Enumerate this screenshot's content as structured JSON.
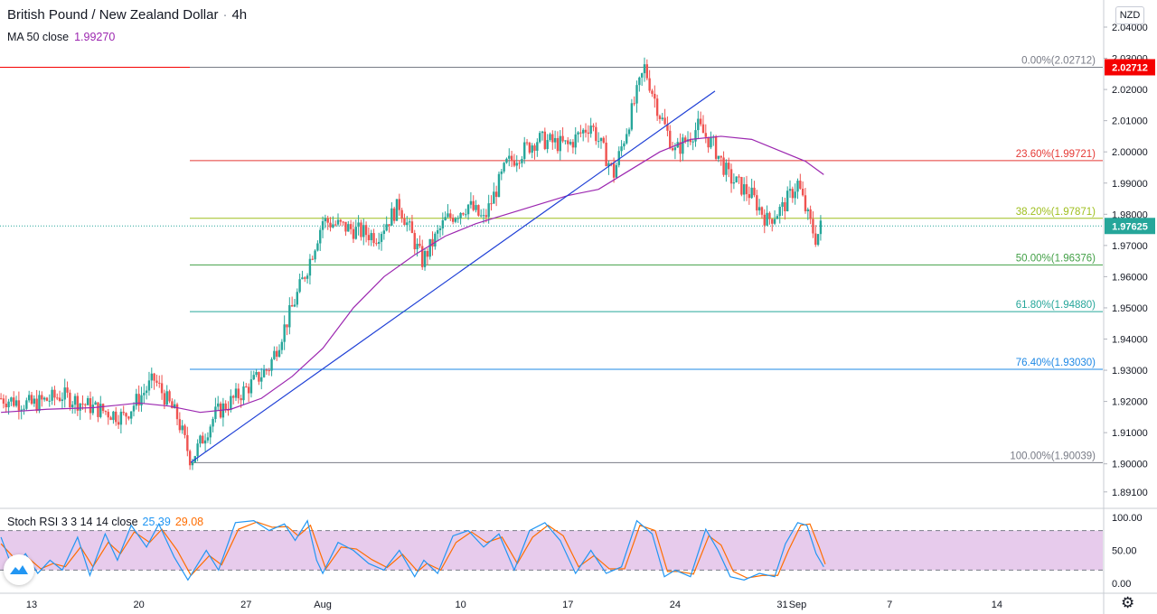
{
  "header": {
    "symbol": "British Pound / New Zealand Dollar",
    "timeframe": "4h",
    "currency": "NZD"
  },
  "ma_legend": {
    "label": "MA 50 close",
    "value": "1.99270"
  },
  "stoch_legend": {
    "label": "Stoch RSI 3 3 14 14 close",
    "k_value": "25.39",
    "d_value": "29.08"
  },
  "icons": [
    "tradingview-logo-icon",
    "gear-icon"
  ],
  "colors": {
    "up": "#26a69a",
    "down": "#ef5350",
    "ma": "#9c27b0",
    "trendline": "#1e3fd6",
    "stoch_k": "#2196f3",
    "stoch_d": "#ff6d00",
    "stoch_band": "#e1bee7",
    "current_price_bg": "#26a69a",
    "high_price_bg": "#f50000"
  },
  "chart_data": {
    "type": "candlestick",
    "ylim": [
      1.887,
      2.044
    ],
    "y_ticks": [
      "1.89100",
      "1.90000",
      "1.91000",
      "1.92000",
      "1.93000",
      "1.94000",
      "1.95000",
      "1.96000",
      "1.97000",
      "1.98000",
      "1.99000",
      "2.00000",
      "2.01000",
      "2.02000",
      "2.03000",
      "2.04000"
    ],
    "x_ticks": [
      {
        "label": "13",
        "day": 13
      },
      {
        "label": "20",
        "day": 20
      },
      {
        "label": "27",
        "day": 27
      },
      {
        "label": "Aug",
        "day": 32
      },
      {
        "label": "10",
        "day": 41
      },
      {
        "label": "17",
        "day": 48
      },
      {
        "label": "24",
        "day": 55
      },
      {
        "label": "31",
        "day": 62
      },
      {
        "label": "Sep",
        "day": 63
      },
      {
        "label": "7",
        "day": 69
      },
      {
        "label": "14",
        "day": 76
      }
    ],
    "current_price": "1.97625",
    "high_price": "2.02712",
    "fib_levels": [
      {
        "label": "0.00%(2.02712)",
        "price": 2.02712,
        "color": "#787b86"
      },
      {
        "label": "23.60%(1.99721)",
        "price": 1.99721,
        "color": "#e53935"
      },
      {
        "label": "38.20%(1.97871)",
        "price": 1.97871,
        "color": "#9fbf1f"
      },
      {
        "label": "50.00%(1.96376)",
        "price": 1.96376,
        "color": "#43a047"
      },
      {
        "label": "61.80%(1.94880)",
        "price": 1.9488,
        "color": "#26a69a"
      },
      {
        "label": "76.40%(1.93030)",
        "price": 1.9303,
        "color": "#1e88e5"
      },
      {
        "label": "100.00%(1.90039)",
        "price": 1.90039,
        "color": "#787b86"
      }
    ],
    "trendline": [
      {
        "day": 23.4,
        "price": 1.9005
      },
      {
        "day": 57.6,
        "price": 2.0195
      }
    ],
    "price_path": [
      {
        "day": 11.0,
        "price": 1.921
      },
      {
        "day": 13.0,
        "price": 1.919
      },
      {
        "day": 15.0,
        "price": 1.922
      },
      {
        "day": 17.0,
        "price": 1.918
      },
      {
        "day": 19.0,
        "price": 1.915
      },
      {
        "day": 21.0,
        "price": 1.927
      },
      {
        "day": 22.5,
        "price": 1.915
      },
      {
        "day": 23.4,
        "price": 1.901
      },
      {
        "day": 25.0,
        "price": 1.916
      },
      {
        "day": 27.0,
        "price": 1.924
      },
      {
        "day": 28.5,
        "price": 1.931
      },
      {
        "day": 30.0,
        "price": 1.95
      },
      {
        "day": 31.0,
        "price": 1.963
      },
      {
        "day": 32.0,
        "price": 1.978
      },
      {
        "day": 34.0,
        "price": 1.975
      },
      {
        "day": 35.5,
        "price": 1.973
      },
      {
        "day": 37.0,
        "price": 1.983
      },
      {
        "day": 38.5,
        "price": 1.965
      },
      {
        "day": 40.0,
        "price": 1.978
      },
      {
        "day": 41.5,
        "price": 1.983
      },
      {
        "day": 42.5,
        "price": 1.978
      },
      {
        "day": 44.0,
        "price": 1.996
      },
      {
        "day": 46.0,
        "price": 2.004
      },
      {
        "day": 48.0,
        "price": 2.002
      },
      {
        "day": 49.5,
        "price": 2.009
      },
      {
        "day": 51.0,
        "price": 1.993
      },
      {
        "day": 52.0,
        "price": 2.01
      },
      {
        "day": 53.0,
        "price": 2.027
      },
      {
        "day": 54.0,
        "price": 2.012
      },
      {
        "day": 55.0,
        "price": 2.0
      },
      {
        "day": 56.5,
        "price": 2.008
      },
      {
        "day": 57.5,
        "price": 2.002
      },
      {
        "day": 58.5,
        "price": 1.992
      },
      {
        "day": 60.0,
        "price": 1.986
      },
      {
        "day": 61.0,
        "price": 1.978
      },
      {
        "day": 62.0,
        "price": 1.982
      },
      {
        "day": 63.0,
        "price": 1.99
      },
      {
        "day": 63.6,
        "price": 1.98
      },
      {
        "day": 64.2,
        "price": 1.972
      },
      {
        "day": 64.5,
        "price": 1.976
      }
    ],
    "ma_path": [
      {
        "day": 11.0,
        "price": 1.9165
      },
      {
        "day": 14.0,
        "price": 1.9175
      },
      {
        "day": 17.0,
        "price": 1.918
      },
      {
        "day": 20.0,
        "price": 1.9195
      },
      {
        "day": 22.0,
        "price": 1.9185
      },
      {
        "day": 24.0,
        "price": 1.9165
      },
      {
        "day": 26.0,
        "price": 1.9175
      },
      {
        "day": 28.0,
        "price": 1.921
      },
      {
        "day": 30.0,
        "price": 1.928
      },
      {
        "day": 32.0,
        "price": 1.937
      },
      {
        "day": 34.0,
        "price": 1.95
      },
      {
        "day": 36.0,
        "price": 1.96
      },
      {
        "day": 38.0,
        "price": 1.967
      },
      {
        "day": 40.0,
        "price": 1.973
      },
      {
        "day": 42.0,
        "price": 1.977
      },
      {
        "day": 44.0,
        "price": 1.98
      },
      {
        "day": 46.0,
        "price": 1.983
      },
      {
        "day": 48.0,
        "price": 1.986
      },
      {
        "day": 50.0,
        "price": 1.988
      },
      {
        "day": 52.0,
        "price": 1.994
      },
      {
        "day": 54.0,
        "price": 2.0
      },
      {
        "day": 56.0,
        "price": 2.004
      },
      {
        "day": 58.0,
        "price": 2.005
      },
      {
        "day": 60.0,
        "price": 2.004
      },
      {
        "day": 62.0,
        "price": 2.0
      },
      {
        "day": 63.5,
        "price": 1.997
      },
      {
        "day": 64.7,
        "price": 1.9927
      }
    ],
    "stoch_rsi": {
      "ylim": [
        0,
        100
      ],
      "y_ticks": [
        "100.00",
        "50.00",
        "0.00"
      ],
      "band": [
        20,
        80
      ],
      "k_path": [
        {
          "day": 11.0,
          "v": 70
        },
        {
          "day": 11.8,
          "v": 20
        },
        {
          "day": 12.6,
          "v": 45
        },
        {
          "day": 13.4,
          "v": 15
        },
        {
          "day": 14.2,
          "v": 35
        },
        {
          "day": 15.0,
          "v": 20
        },
        {
          "day": 16.0,
          "v": 70
        },
        {
          "day": 16.8,
          "v": 12
        },
        {
          "day": 17.8,
          "v": 75
        },
        {
          "day": 18.6,
          "v": 35
        },
        {
          "day": 19.5,
          "v": 88
        },
        {
          "day": 20.5,
          "v": 55
        },
        {
          "day": 21.3,
          "v": 90
        },
        {
          "day": 22.3,
          "v": 40
        },
        {
          "day": 23.2,
          "v": 5
        },
        {
          "day": 24.4,
          "v": 50
        },
        {
          "day": 25.2,
          "v": 20
        },
        {
          "day": 26.3,
          "v": 92
        },
        {
          "day": 27.5,
          "v": 95
        },
        {
          "day": 28.5,
          "v": 80
        },
        {
          "day": 29.5,
          "v": 90
        },
        {
          "day": 30.2,
          "v": 65
        },
        {
          "day": 31.0,
          "v": 95
        },
        {
          "day": 31.6,
          "v": 35
        },
        {
          "day": 32.0,
          "v": 15
        },
        {
          "day": 33.0,
          "v": 62
        },
        {
          "day": 34.0,
          "v": 50
        },
        {
          "day": 35.0,
          "v": 30
        },
        {
          "day": 36.0,
          "v": 20
        },
        {
          "day": 37.0,
          "v": 50
        },
        {
          "day": 38.0,
          "v": 10
        },
        {
          "day": 38.6,
          "v": 35
        },
        {
          "day": 39.5,
          "v": 15
        },
        {
          "day": 40.5,
          "v": 72
        },
        {
          "day": 41.5,
          "v": 80
        },
        {
          "day": 42.5,
          "v": 55
        },
        {
          "day": 43.5,
          "v": 75
        },
        {
          "day": 44.5,
          "v": 20
        },
        {
          "day": 45.5,
          "v": 80
        },
        {
          "day": 46.5,
          "v": 92
        },
        {
          "day": 47.5,
          "v": 65
        },
        {
          "day": 48.5,
          "v": 15
        },
        {
          "day": 49.5,
          "v": 50
        },
        {
          "day": 50.5,
          "v": 15
        },
        {
          "day": 51.5,
          "v": 25
        },
        {
          "day": 52.5,
          "v": 95
        },
        {
          "day": 53.5,
          "v": 75
        },
        {
          "day": 54.3,
          "v": 10
        },
        {
          "day": 55.0,
          "v": 20
        },
        {
          "day": 56.0,
          "v": 10
        },
        {
          "day": 57.0,
          "v": 82
        },
        {
          "day": 57.8,
          "v": 50
        },
        {
          "day": 58.6,
          "v": 10
        },
        {
          "day": 59.5,
          "v": 5
        },
        {
          "day": 60.5,
          "v": 15
        },
        {
          "day": 61.5,
          "v": 10
        },
        {
          "day": 62.2,
          "v": 60
        },
        {
          "day": 63.0,
          "v": 92
        },
        {
          "day": 63.6,
          "v": 88
        },
        {
          "day": 64.2,
          "v": 45
        },
        {
          "day": 64.7,
          "v": 25
        }
      ],
      "d_path": [
        {
          "day": 11.0,
          "v": 60
        },
        {
          "day": 12.0,
          "v": 35
        },
        {
          "day": 12.8,
          "v": 38
        },
        {
          "day": 13.6,
          "v": 22
        },
        {
          "day": 14.4,
          "v": 30
        },
        {
          "day": 15.2,
          "v": 25
        },
        {
          "day": 16.2,
          "v": 55
        },
        {
          "day": 17.0,
          "v": 25
        },
        {
          "day": 18.0,
          "v": 62
        },
        {
          "day": 18.8,
          "v": 45
        },
        {
          "day": 19.7,
          "v": 78
        },
        {
          "day": 20.7,
          "v": 62
        },
        {
          "day": 21.5,
          "v": 82
        },
        {
          "day": 22.5,
          "v": 50
        },
        {
          "day": 23.4,
          "v": 12
        },
        {
          "day": 24.6,
          "v": 42
        },
        {
          "day": 25.4,
          "v": 28
        },
        {
          "day": 26.5,
          "v": 82
        },
        {
          "day": 27.7,
          "v": 93
        },
        {
          "day": 28.7,
          "v": 85
        },
        {
          "day": 29.7,
          "v": 86
        },
        {
          "day": 30.4,
          "v": 72
        },
        {
          "day": 31.2,
          "v": 88
        },
        {
          "day": 31.8,
          "v": 48
        },
        {
          "day": 32.2,
          "v": 22
        },
        {
          "day": 33.2,
          "v": 55
        },
        {
          "day": 34.2,
          "v": 52
        },
        {
          "day": 35.2,
          "v": 36
        },
        {
          "day": 36.2,
          "v": 24
        },
        {
          "day": 37.2,
          "v": 44
        },
        {
          "day": 38.2,
          "v": 18
        },
        {
          "day": 38.8,
          "v": 30
        },
        {
          "day": 39.7,
          "v": 20
        },
        {
          "day": 40.7,
          "v": 62
        },
        {
          "day": 41.7,
          "v": 78
        },
        {
          "day": 42.7,
          "v": 62
        },
        {
          "day": 43.7,
          "v": 70
        },
        {
          "day": 44.7,
          "v": 30
        },
        {
          "day": 45.7,
          "v": 70
        },
        {
          "day": 46.7,
          "v": 88
        },
        {
          "day": 47.7,
          "v": 72
        },
        {
          "day": 48.7,
          "v": 25
        },
        {
          "day": 49.7,
          "v": 42
        },
        {
          "day": 50.7,
          "v": 22
        },
        {
          "day": 51.7,
          "v": 22
        },
        {
          "day": 52.7,
          "v": 88
        },
        {
          "day": 53.7,
          "v": 80
        },
        {
          "day": 54.5,
          "v": 18
        },
        {
          "day": 55.2,
          "v": 18
        },
        {
          "day": 56.2,
          "v": 14
        },
        {
          "day": 57.2,
          "v": 72
        },
        {
          "day": 58.0,
          "v": 58
        },
        {
          "day": 58.8,
          "v": 18
        },
        {
          "day": 59.7,
          "v": 8
        },
        {
          "day": 60.7,
          "v": 12
        },
        {
          "day": 61.7,
          "v": 12
        },
        {
          "day": 62.4,
          "v": 50
        },
        {
          "day": 63.2,
          "v": 88
        },
        {
          "day": 63.8,
          "v": 90
        },
        {
          "day": 64.4,
          "v": 55
        },
        {
          "day": 64.8,
          "v": 29
        }
      ]
    }
  }
}
